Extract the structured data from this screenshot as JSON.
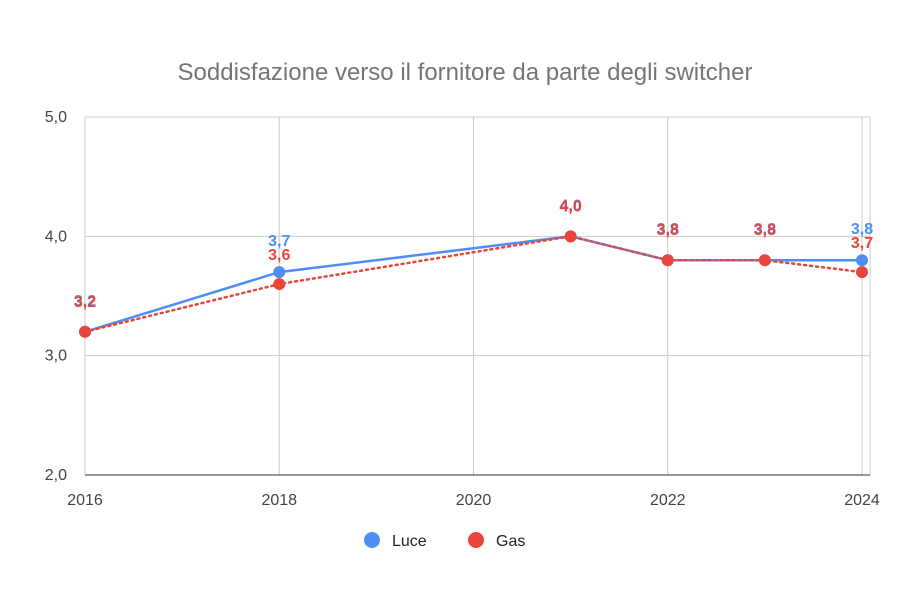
{
  "chart_data": {
    "type": "line",
    "title": "Soddisfazione verso il fornitore da parte degli switcher",
    "xlabel": "",
    "ylabel": "",
    "xlim": [
      2016,
      2024
    ],
    "ylim": [
      2.0,
      5.0
    ],
    "x_ticks": [
      2016,
      2018,
      2020,
      2022,
      2024
    ],
    "x_tick_labels": [
      "2016",
      "2018",
      "2020",
      "2022",
      "2024"
    ],
    "y_ticks": [
      2.0,
      3.0,
      4.0,
      5.0
    ],
    "y_tick_labels": [
      "2,0",
      "3,0",
      "4,0",
      "5,0"
    ],
    "grid": true,
    "legend_position": "bottom",
    "series": [
      {
        "name": "Luce",
        "color": "#4f8df5",
        "line_style": "solid",
        "x": [
          2016,
          2018,
          2021,
          2022,
          2023,
          2024
        ],
        "values": [
          3.2,
          3.7,
          4.0,
          3.8,
          3.8,
          3.8
        ],
        "labels": [
          "3,2",
          "3,7",
          "4,0",
          "3,8",
          "3,8",
          "3,8"
        ]
      },
      {
        "name": "Gas",
        "color": "#e8453c",
        "line_style": "dotted",
        "x": [
          2016,
          2018,
          2021,
          2022,
          2023,
          2024
        ],
        "values": [
          3.2,
          3.6,
          4.0,
          3.8,
          3.8,
          3.7
        ],
        "labels": [
          "3,2",
          "3,6",
          "4,0",
          "3,8",
          "3,8",
          "3,7"
        ]
      }
    ]
  }
}
